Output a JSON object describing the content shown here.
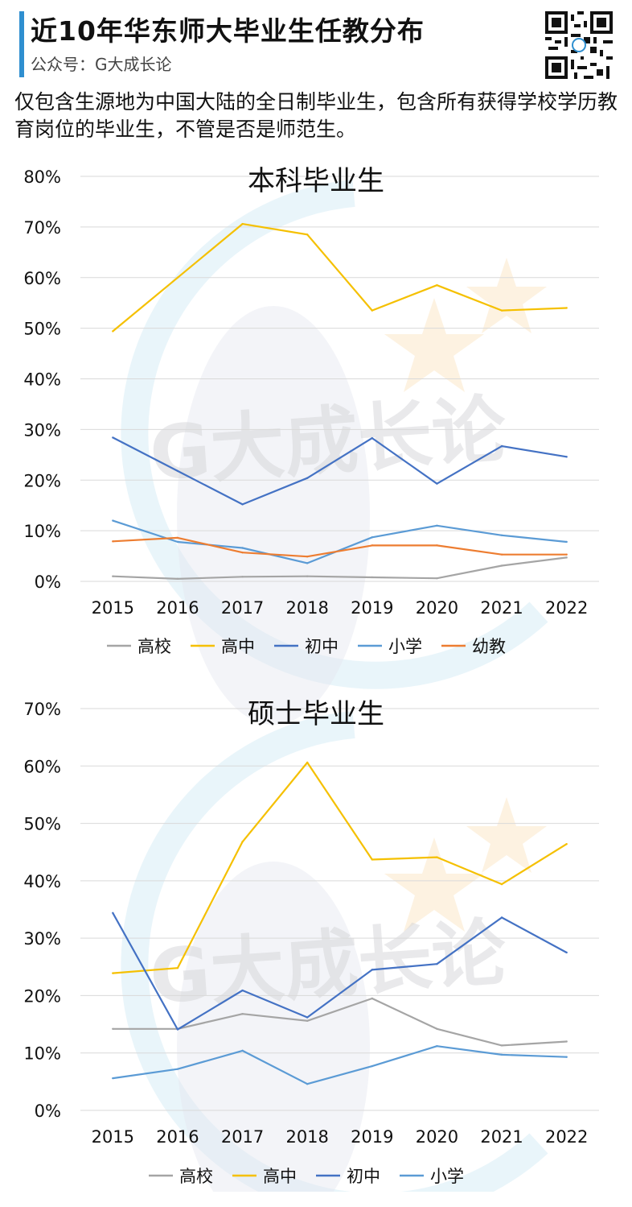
{
  "header": {
    "title": "近10年华东师大毕业生任教分布",
    "subtitle": "公众号：G大成长论"
  },
  "description": "仅包含生源地为中国大陆的全日制毕业生，包含所有获得学校学历教育岗位的毕业生，不管是否是师范生。",
  "watermark_text": "G大成长论",
  "chart_data": [
    {
      "type": "line",
      "title": "本科毕业生",
      "categories": [
        "2015",
        "2016",
        "2017",
        "2018",
        "2019",
        "2020",
        "2021",
        "2022"
      ],
      "ylim": [
        0,
        80
      ],
      "yticks": [
        "0%",
        "10%",
        "20%",
        "30%",
        "40%",
        "50%",
        "60%",
        "70%",
        "80%"
      ],
      "grid": true,
      "legend": "bottom",
      "series": [
        {
          "name": "高校",
          "color": "#a5a5a5",
          "values": [
            1.0,
            0.5,
            0.9,
            1.0,
            0.8,
            0.6,
            3.1,
            4.7
          ]
        },
        {
          "name": "高中",
          "color": "#f5c000",
          "values": [
            49.4,
            60.0,
            70.6,
            68.5,
            53.5,
            58.5,
            53.5,
            54.0
          ]
        },
        {
          "name": "初中",
          "color": "#4472c4",
          "values": [
            28.4,
            21.8,
            15.2,
            20.4,
            28.3,
            19.3,
            26.7,
            24.6
          ]
        },
        {
          "name": "小学",
          "color": "#5b9bd5",
          "values": [
            12.0,
            7.8,
            6.6,
            3.6,
            8.7,
            11.0,
            9.1,
            7.8
          ]
        },
        {
          "name": "幼教",
          "color": "#ed7d31",
          "values": [
            7.9,
            8.6,
            5.7,
            4.9,
            7.1,
            7.1,
            5.3,
            5.3
          ]
        }
      ]
    },
    {
      "type": "line",
      "title": "硕士毕业生",
      "categories": [
        "2015",
        "2016",
        "2017",
        "2018",
        "2019",
        "2020",
        "2021",
        "2022"
      ],
      "ylim": [
        0,
        70
      ],
      "yticks": [
        "0%",
        "10%",
        "20%",
        "30%",
        "40%",
        "50%",
        "60%",
        "70%"
      ],
      "grid": true,
      "legend": "bottom",
      "series": [
        {
          "name": "高校",
          "color": "#a5a5a5",
          "values": [
            14.2,
            14.2,
            16.8,
            15.6,
            19.5,
            14.2,
            11.3,
            12.0
          ]
        },
        {
          "name": "高中",
          "color": "#f5c000",
          "values": [
            23.9,
            24.8,
            46.8,
            60.6,
            43.7,
            44.1,
            39.4,
            46.4
          ]
        },
        {
          "name": "初中",
          "color": "#4472c4",
          "values": [
            34.4,
            14.1,
            20.9,
            16.2,
            24.5,
            25.5,
            33.6,
            27.5
          ]
        },
        {
          "name": "小学",
          "color": "#5b9bd5",
          "values": [
            5.6,
            7.2,
            10.4,
            4.6,
            7.7,
            11.2,
            9.7,
            9.3
          ]
        }
      ]
    }
  ]
}
